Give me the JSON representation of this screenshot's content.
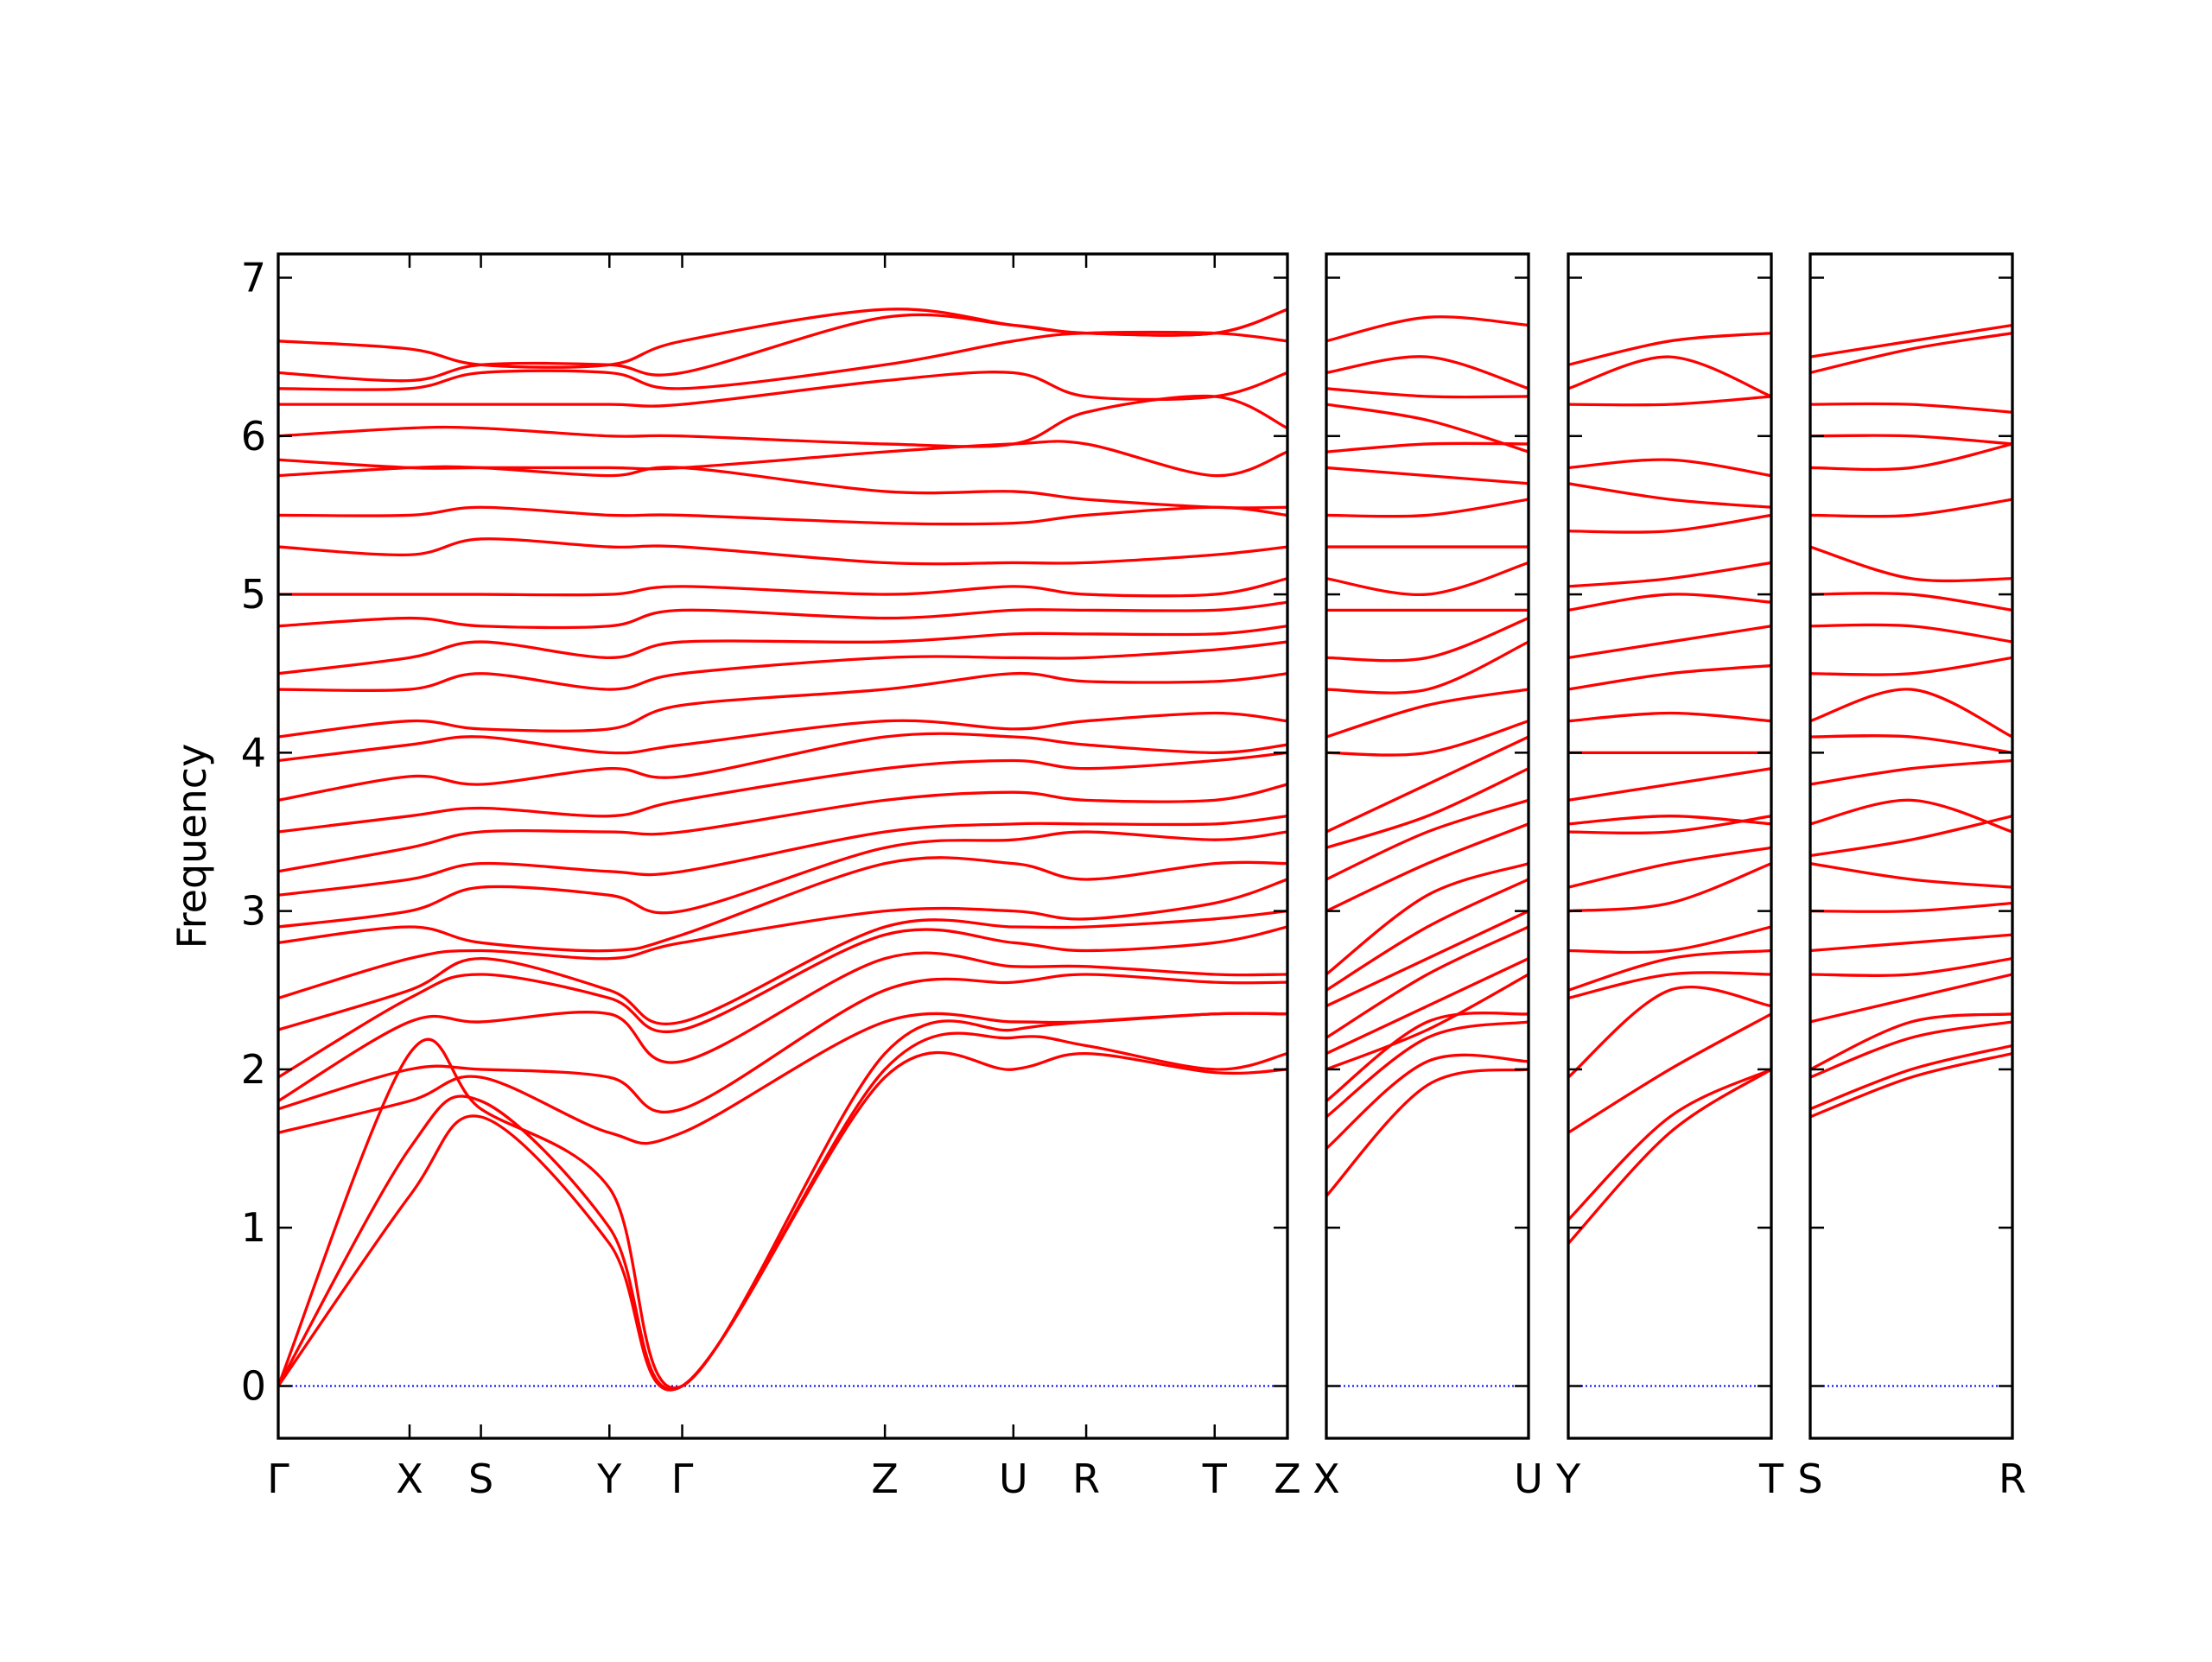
{
  "chart_data": [
    {
      "type": "line",
      "ylabel": "Frequency",
      "color": "#ff0000",
      "zero_line_color": "#0000ff",
      "show_ytick_labels": true,
      "x": [
        0,
        0.92,
        1.42,
        2.32,
        2.83,
        4.25,
        5.15,
        5.66,
        6.56,
        7.07
      ],
      "xlim": [
        0,
        7.07
      ],
      "xticks": [
        {
          "value": 0,
          "label": "Γ"
        },
        {
          "value": 0.92,
          "label": "X"
        },
        {
          "value": 1.42,
          "label": "S"
        },
        {
          "value": 2.32,
          "label": "Y"
        },
        {
          "value": 2.83,
          "label": "Γ"
        },
        {
          "value": 4.25,
          "label": "Z"
        },
        {
          "value": 5.15,
          "label": "U"
        },
        {
          "value": 5.66,
          "label": "R"
        },
        {
          "value": 6.56,
          "label": "T"
        },
        {
          "value": 7.07,
          "label": "Z"
        }
      ],
      "ylim": [
        -0.33,
        7.15
      ],
      "yticks": [
        0,
        1,
        2,
        3,
        4,
        5,
        6,
        7
      ],
      "series": [
        {
          "values": [
            0,
            1.2,
            1.7,
            0.9,
            0,
            1.95,
            2.0,
            2.1,
            1.98,
            2.0
          ]
        },
        {
          "values": [
            0,
            1.5,
            1.8,
            1.0,
            0,
            2.0,
            2.2,
            2.15,
            2.0,
            2.1
          ]
        },
        {
          "values": [
            0,
            2.1,
            1.75,
            1.25,
            0,
            2.1,
            2.25,
            2.3,
            2.35,
            2.35
          ]
        },
        {
          "values": [
            1.6,
            1.8,
            1.95,
            1.6,
            1.6,
            2.3,
            2.3,
            2.3,
            2.35,
            2.35
          ]
        },
        {
          "values": [
            1.75,
            2.0,
            2.0,
            1.95,
            1.75,
            2.5,
            2.55,
            2.6,
            2.55,
            2.55
          ]
        },
        {
          "values": [
            1.8,
            2.3,
            2.3,
            2.35,
            2.05,
            2.7,
            2.65,
            2.65,
            2.6,
            2.6
          ]
        },
        {
          "values": [
            1.95,
            2.45,
            2.6,
            2.45,
            2.25,
            2.85,
            2.8,
            2.75,
            2.8,
            2.9
          ]
        },
        {
          "values": [
            2.25,
            2.5,
            2.7,
            2.5,
            2.3,
            2.9,
            2.9,
            2.9,
            2.95,
            3.0
          ]
        },
        {
          "values": [
            2.45,
            2.7,
            2.75,
            2.7,
            2.8,
            3.0,
            3.0,
            2.95,
            3.05,
            3.2
          ]
        },
        {
          "values": [
            2.8,
            2.9,
            2.8,
            2.75,
            2.85,
            3.3,
            3.3,
            3.2,
            3.3,
            3.3
          ]
        },
        {
          "values": [
            2.9,
            3.0,
            3.15,
            3.1,
            3.0,
            3.4,
            3.45,
            3.5,
            3.45,
            3.5
          ]
        },
        {
          "values": [
            3.1,
            3.2,
            3.3,
            3.25,
            3.25,
            3.5,
            3.55,
            3.55,
            3.55,
            3.6
          ]
        },
        {
          "values": [
            3.25,
            3.4,
            3.5,
            3.5,
            3.5,
            3.7,
            3.75,
            3.7,
            3.7,
            3.8
          ]
        },
        {
          "values": [
            3.5,
            3.6,
            3.65,
            3.6,
            3.7,
            3.9,
            3.95,
            3.9,
            3.95,
            4.0
          ]
        },
        {
          "values": [
            3.7,
            3.85,
            3.8,
            3.9,
            3.85,
            4.1,
            4.1,
            4.05,
            4.0,
            4.05
          ]
        },
        {
          "values": [
            3.95,
            4.05,
            4.1,
            4.0,
            4.05,
            4.2,
            4.15,
            4.2,
            4.25,
            4.2
          ]
        },
        {
          "values": [
            4.1,
            4.2,
            4.15,
            4.15,
            4.3,
            4.4,
            4.5,
            4.45,
            4.45,
            4.5
          ]
        },
        {
          "values": [
            4.4,
            4.4,
            4.5,
            4.4,
            4.5,
            4.6,
            4.6,
            4.6,
            4.65,
            4.7
          ]
        },
        {
          "values": [
            4.5,
            4.6,
            4.7,
            4.6,
            4.7,
            4.7,
            4.75,
            4.75,
            4.75,
            4.8
          ]
        },
        {
          "values": [
            4.8,
            4.85,
            4.8,
            4.8,
            4.9,
            4.85,
            4.9,
            4.9,
            4.9,
            4.95
          ]
        },
        {
          "values": [
            5.0,
            5.0,
            5.0,
            5.0,
            5.05,
            5.0,
            5.05,
            5.0,
            5.0,
            5.1
          ]
        },
        {
          "values": [
            5.3,
            5.25,
            5.35,
            5.3,
            5.3,
            5.2,
            5.2,
            5.2,
            5.25,
            5.3
          ]
        },
        {
          "values": [
            5.5,
            5.5,
            5.55,
            5.5,
            5.5,
            5.45,
            5.45,
            5.5,
            5.55,
            5.5
          ]
        },
        {
          "values": [
            5.75,
            5.8,
            5.8,
            5.75,
            5.8,
            5.65,
            5.65,
            5.6,
            5.55,
            5.55
          ]
        },
        {
          "values": [
            5.85,
            5.8,
            5.8,
            5.8,
            5.8,
            5.9,
            5.95,
            5.95,
            5.75,
            5.9
          ]
        },
        {
          "values": [
            6.0,
            6.05,
            6.05,
            6.0,
            6.0,
            5.95,
            5.95,
            6.15,
            6.25,
            6.05
          ]
        },
        {
          "values": [
            6.2,
            6.2,
            6.2,
            6.2,
            6.2,
            6.35,
            6.4,
            6.25,
            6.25,
            6.4
          ]
        },
        {
          "values": [
            6.3,
            6.3,
            6.4,
            6.4,
            6.3,
            6.45,
            6.6,
            6.65,
            6.65,
            6.6
          ]
        },
        {
          "values": [
            6.4,
            6.35,
            6.45,
            6.45,
            6.4,
            6.75,
            6.7,
            6.65,
            6.65,
            6.8
          ]
        },
        {
          "values": [
            6.6,
            6.55,
            6.45,
            6.45,
            6.6,
            6.8,
            6.7,
            6.65,
            6.65,
            6.8
          ]
        }
      ]
    },
    {
      "type": "line",
      "color": "#ff0000",
      "zero_line_color": "#0000ff",
      "show_ytick_labels": false,
      "x": [
        0,
        0.71,
        1.42
      ],
      "xlim": [
        0,
        1.42
      ],
      "xticks": [
        {
          "value": 0,
          "label": "X"
        },
        {
          "value": 1.42,
          "label": "U"
        }
      ],
      "ylim": [
        -0.33,
        7.15
      ],
      "yticks": [
        0,
        1,
        2,
        3,
        4,
        5,
        6,
        7
      ],
      "series": [
        {
          "values": [
            1.2,
            1.9,
            2.0
          ]
        },
        {
          "values": [
            1.5,
            2.05,
            2.05
          ]
        },
        {
          "values": [
            1.7,
            2.2,
            2.3
          ]
        },
        {
          "values": [
            1.8,
            2.3,
            2.35
          ]
        },
        {
          "values": [
            2.0,
            2.25,
            2.6
          ]
        },
        {
          "values": [
            2.1,
            2.4,
            2.7
          ]
        },
        {
          "values": [
            2.2,
            2.6,
            2.9
          ]
        },
        {
          "values": [
            2.4,
            2.7,
            3.0
          ]
        },
        {
          "values": [
            2.5,
            2.9,
            3.2
          ]
        },
        {
          "values": [
            2.6,
            3.1,
            3.3
          ]
        },
        {
          "values": [
            3.0,
            3.3,
            3.55
          ]
        },
        {
          "values": [
            3.2,
            3.5,
            3.7
          ]
        },
        {
          "values": [
            3.4,
            3.6,
            3.9
          ]
        },
        {
          "values": [
            3.5,
            3.8,
            4.1
          ]
        },
        {
          "values": [
            4.0,
            4.0,
            4.2
          ]
        },
        {
          "values": [
            4.1,
            4.3,
            4.4
          ]
        },
        {
          "values": [
            4.4,
            4.4,
            4.7
          ]
        },
        {
          "values": [
            4.6,
            4.6,
            4.85
          ]
        },
        {
          "values": [
            4.9,
            4.9,
            4.9
          ]
        },
        {
          "values": [
            5.1,
            5.0,
            5.2
          ]
        },
        {
          "values": [
            5.3,
            5.3,
            5.3
          ]
        },
        {
          "values": [
            5.5,
            5.5,
            5.6
          ]
        },
        {
          "values": [
            5.8,
            5.75,
            5.7
          ]
        },
        {
          "values": [
            5.9,
            5.95,
            5.95
          ]
        },
        {
          "values": [
            6.2,
            6.1,
            5.9
          ]
        },
        {
          "values": [
            6.3,
            6.25,
            6.25
          ]
        },
        {
          "values": [
            6.4,
            6.5,
            6.3
          ]
        },
        {
          "values": [
            6.6,
            6.75,
            6.7
          ]
        }
      ]
    },
    {
      "type": "line",
      "color": "#ff0000",
      "zero_line_color": "#0000ff",
      "show_ytick_labels": false,
      "x": [
        0,
        0.71,
        1.42
      ],
      "xlim": [
        0,
        1.42
      ],
      "xticks": [
        {
          "value": 0,
          "label": "Y"
        },
        {
          "value": 1.42,
          "label": "T"
        }
      ],
      "ylim": [
        -0.33,
        7.15
      ],
      "yticks": [
        0,
        1,
        2,
        3,
        4,
        5,
        6,
        7
      ],
      "series": [
        {
          "values": [
            0.9,
            1.6,
            2.0
          ]
        },
        {
          "values": [
            1.05,
            1.7,
            2.0
          ]
        },
        {
          "values": [
            1.6,
            2.0,
            2.35
          ]
        },
        {
          "values": [
            1.95,
            2.5,
            2.4
          ]
        },
        {
          "values": [
            2.45,
            2.6,
            2.6
          ]
        },
        {
          "values": [
            2.5,
            2.7,
            2.75
          ]
        },
        {
          "values": [
            2.75,
            2.75,
            2.9
          ]
        },
        {
          "values": [
            3.0,
            3.05,
            3.3
          ]
        },
        {
          "values": [
            3.15,
            3.3,
            3.4
          ]
        },
        {
          "values": [
            3.5,
            3.5,
            3.6
          ]
        },
        {
          "values": [
            3.55,
            3.6,
            3.55
          ]
        },
        {
          "values": [
            3.7,
            3.8,
            3.9
          ]
        },
        {
          "values": [
            4.0,
            4.0,
            4.0
          ]
        },
        {
          "values": [
            4.2,
            4.25,
            4.2
          ]
        },
        {
          "values": [
            4.4,
            4.5,
            4.55
          ]
        },
        {
          "values": [
            4.6,
            4.7,
            4.8
          ]
        },
        {
          "values": [
            4.9,
            5.0,
            4.95
          ]
        },
        {
          "values": [
            5.05,
            5.1,
            5.2
          ]
        },
        {
          "values": [
            5.4,
            5.4,
            5.5
          ]
        },
        {
          "values": [
            5.7,
            5.6,
            5.55
          ]
        },
        {
          "values": [
            5.8,
            5.85,
            5.75
          ]
        },
        {
          "values": [
            6.2,
            6.2,
            6.25
          ]
        },
        {
          "values": [
            6.3,
            6.5,
            6.25
          ]
        },
        {
          "values": [
            6.45,
            6.6,
            6.65
          ]
        }
      ]
    },
    {
      "type": "line",
      "color": "#ff0000",
      "zero_line_color": "#0000ff",
      "show_ytick_labels": false,
      "x": [
        0,
        0.71,
        1.42
      ],
      "xlim": [
        0,
        1.42
      ],
      "xticks": [
        {
          "value": 0,
          "label": "S"
        },
        {
          "value": 1.42,
          "label": "R"
        }
      ],
      "ylim": [
        -0.33,
        7.15
      ],
      "yticks": [
        0,
        1,
        2,
        3,
        4,
        5,
        6,
        7
      ],
      "series": [
        {
          "values": [
            1.7,
            1.95,
            2.1
          ]
        },
        {
          "values": [
            1.75,
            2.0,
            2.15
          ]
        },
        {
          "values": [
            1.95,
            2.2,
            2.3
          ]
        },
        {
          "values": [
            2.0,
            2.3,
            2.35
          ]
        },
        {
          "values": [
            2.3,
            2.45,
            2.6
          ]
        },
        {
          "values": [
            2.6,
            2.6,
            2.7
          ]
        },
        {
          "values": [
            2.75,
            2.8,
            2.85
          ]
        },
        {
          "values": [
            3.0,
            3.0,
            3.05
          ]
        },
        {
          "values": [
            3.3,
            3.2,
            3.15
          ]
        },
        {
          "values": [
            3.35,
            3.45,
            3.6
          ]
        },
        {
          "values": [
            3.55,
            3.7,
            3.5
          ]
        },
        {
          "values": [
            3.8,
            3.9,
            3.95
          ]
        },
        {
          "values": [
            4.1,
            4.1,
            4.0
          ]
        },
        {
          "values": [
            4.2,
            4.4,
            4.1
          ]
        },
        {
          "values": [
            4.5,
            4.5,
            4.6
          ]
        },
        {
          "values": [
            4.8,
            4.8,
            4.7
          ]
        },
        {
          "values": [
            5.0,
            5.0,
            4.9
          ]
        },
        {
          "values": [
            5.3,
            5.1,
            5.1
          ]
        },
        {
          "values": [
            5.5,
            5.5,
            5.6
          ]
        },
        {
          "values": [
            5.8,
            5.8,
            5.95
          ]
        },
        {
          "values": [
            6.0,
            6.0,
            5.95
          ]
        },
        {
          "values": [
            6.2,
            6.2,
            6.15
          ]
        },
        {
          "values": [
            6.4,
            6.55,
            6.65
          ]
        },
        {
          "values": [
            6.5,
            6.6,
            6.7
          ]
        }
      ]
    }
  ]
}
